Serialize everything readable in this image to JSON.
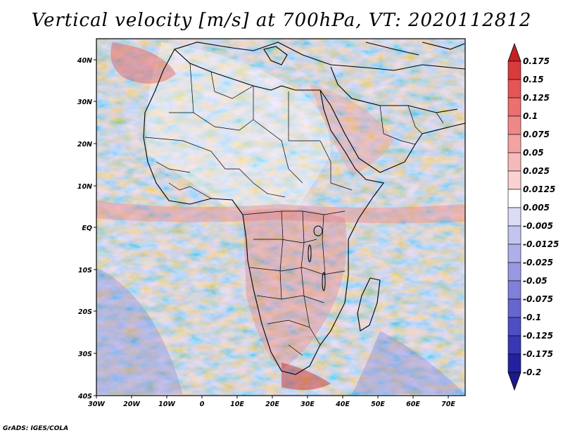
{
  "title": "Vertical velocity [m/s] at 700hPa, VT: 2020112812",
  "credit": "GrADS: IGES/COLA",
  "map": {
    "lat_ticks": [
      "40N",
      "30N",
      "20N",
      "10N",
      "EQ",
      "10S",
      "20S",
      "30S",
      "40S"
    ],
    "lon_ticks": [
      "30W",
      "20W",
      "10W",
      "0",
      "10E",
      "20E",
      "30E",
      "40E",
      "50E",
      "60E",
      "70E"
    ],
    "lon_range": [
      -30,
      75
    ],
    "lat_range": [
      -40,
      45
    ]
  },
  "colorbar": {
    "labels": [
      "0.175",
      "0.15",
      "0.125",
      "0.1",
      "0.075",
      "0.05",
      "0.025",
      "0.0125",
      "0.005",
      "-0.005",
      "-0.0125",
      "-0.025",
      "-0.05",
      "-0.075",
      "-0.1",
      "-0.125",
      "-0.175",
      "-0.2"
    ],
    "colors": [
      "#c42124",
      "#d93b3b",
      "#e65555",
      "#ec7070",
      "#f08888",
      "#f4a2a2",
      "#f7baba",
      "#fad2d2",
      "#ffffff",
      "#dcdcf6",
      "#c4c4f0",
      "#aeaeea",
      "#9898e2",
      "#8080da",
      "#6666d0",
      "#4e4ec4",
      "#3838b4",
      "#2222a0",
      "#1a1a8c"
    ]
  }
}
